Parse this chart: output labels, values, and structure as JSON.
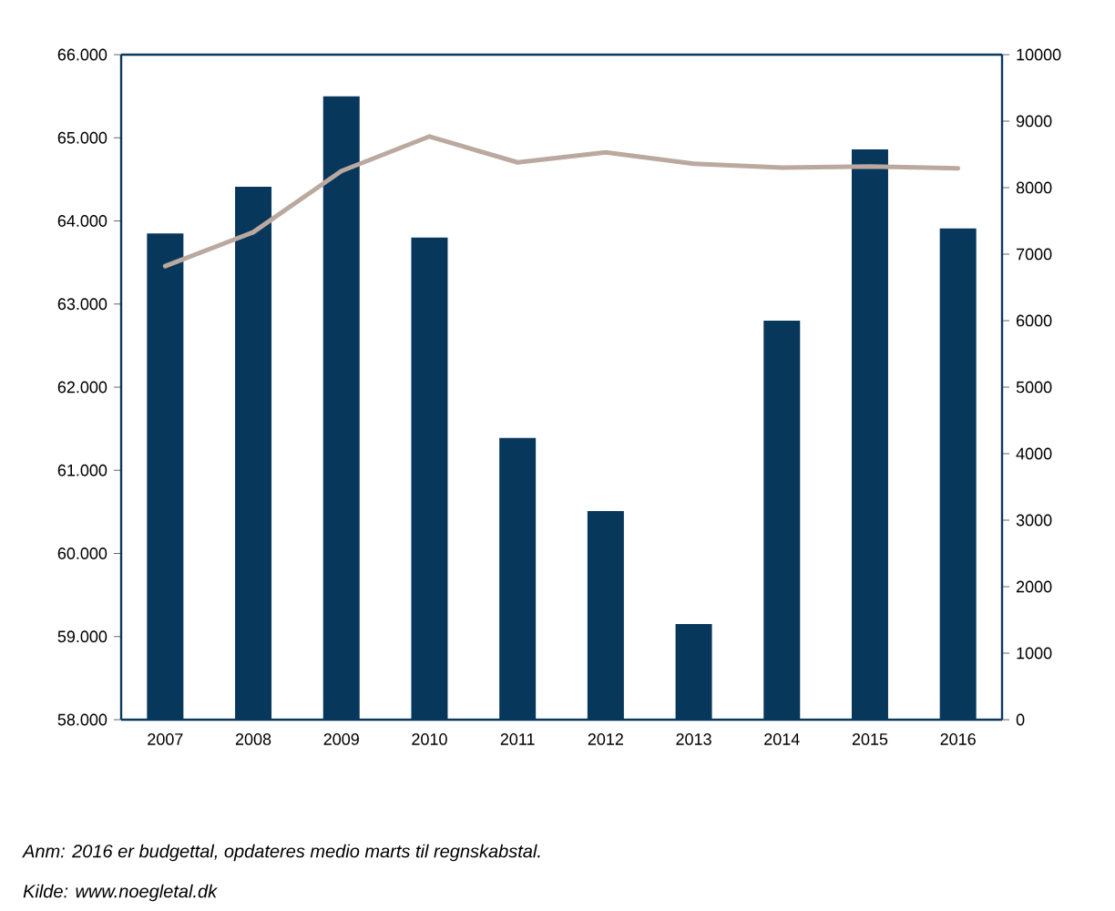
{
  "chart_data": {
    "type": "bar",
    "categories": [
      "2007",
      "2008",
      "2009",
      "2010",
      "2011",
      "2012",
      "2013",
      "2014",
      "2015",
      "2016"
    ],
    "series": [
      {
        "color": "#08375c",
        "values": [
          63850,
          64410,
          65500,
          63800,
          61390,
          60510,
          59150,
          62800,
          64860,
          63910
        ]
      },
      {
        "type": "line",
        "axis": "y2",
        "color": "#bba9a0",
        "values": [
          6820,
          7330,
          8250,
          8770,
          8380,
          8530,
          8360,
          8300,
          8320,
          8290
        ]
      }
    ],
    "ylim": [
      58000,
      66000
    ],
    "yticks": [
      {
        "value": 58000,
        "label": "58.000"
      },
      {
        "value": 59000,
        "label": "59.000"
      },
      {
        "value": 60000,
        "label": "60.000"
      },
      {
        "value": 61000,
        "label": "61.000"
      },
      {
        "value": 62000,
        "label": "62.000"
      },
      {
        "value": 63000,
        "label": "63.000"
      },
      {
        "value": 64000,
        "label": "64.000"
      },
      {
        "value": 65000,
        "label": "65.000"
      },
      {
        "value": 66000,
        "label": "66.000"
      }
    ],
    "y2lim": [
      0,
      10000
    ],
    "y2ticks": [
      0,
      1000,
      2000,
      3000,
      4000,
      5000,
      6000,
      7000,
      8000,
      9000,
      10000
    ],
    "annotations": [
      "Anm: 2016 er budgettal, opdateres medio marts til regnskabstal.",
      "Kilde: www.noegletal.dk"
    ]
  }
}
